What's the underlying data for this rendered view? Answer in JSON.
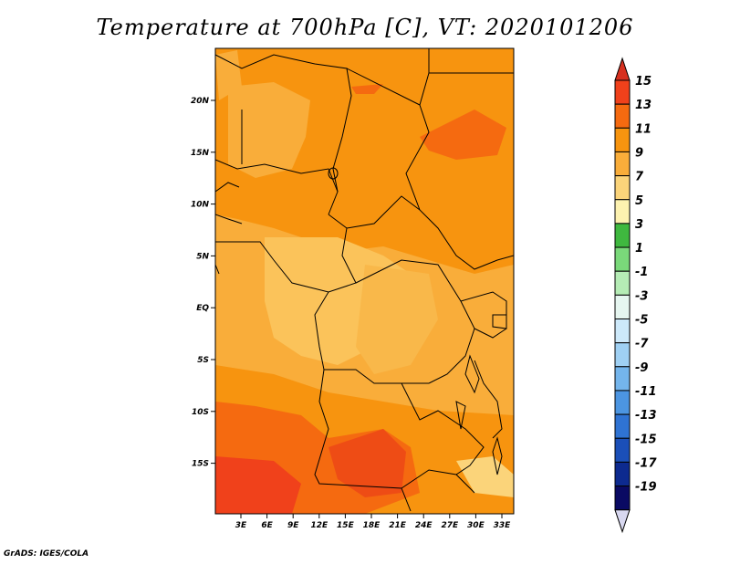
{
  "title": "Temperature at 700hPa [C], VT: 2020101206",
  "credit": "GrADS: IGES/COLA",
  "map": {
    "lon_ticks": [
      "3E",
      "6E",
      "9E",
      "12E",
      "15E",
      "18E",
      "21E",
      "24E",
      "27E",
      "30E",
      "33E"
    ],
    "lat_ticks": [
      "20N",
      "15N",
      "10N",
      "5N",
      "EQ",
      "5S",
      "10S",
      "15S"
    ]
  },
  "colorbar": {
    "labels": [
      "15",
      "13",
      "11",
      "9",
      "7",
      "5",
      "3",
      "1",
      "-1",
      "-3",
      "-5",
      "-7",
      "-9",
      "-11",
      "-13",
      "-15",
      "-17",
      "-19"
    ],
    "colors": [
      "#d7301f",
      "#f0411b",
      "#f56a10",
      "#f7940f",
      "#f9ad3a",
      "#fbd47a",
      "#fdf2b0",
      "#3fb83f",
      "#7ad97a",
      "#b5ecb5",
      "#e6f6f0",
      "#cde9fa",
      "#9fd0f3",
      "#74b5ec",
      "#4c95e1",
      "#2f73d3",
      "#1b4fb8",
      "#0d2a8f",
      "#0a0a63",
      "#d8d8f0"
    ]
  }
}
